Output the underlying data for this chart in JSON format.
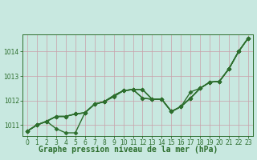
{
  "title": "Graphe pression niveau de la mer (hPa)",
  "bg_color": "#c8e8e0",
  "plot_bg_color": "#c8e8e0",
  "grid_color": "#c8a0a8",
  "line_color": "#2d6e2d",
  "marker": "D",
  "markersize": 2.5,
  "linewidth": 1.0,
  "xlim": [
    -0.5,
    23.5
  ],
  "ylim": [
    1010.55,
    1014.7
  ],
  "yticks": [
    1011,
    1012,
    1013,
    1014
  ],
  "xticks": [
    0,
    1,
    2,
    3,
    4,
    5,
    6,
    7,
    8,
    9,
    10,
    11,
    12,
    13,
    14,
    15,
    16,
    17,
    18,
    19,
    20,
    21,
    22,
    23
  ],
  "tick_fontsize": 5.5,
  "ylabel_fontsize": 6.0,
  "xlabel_fontsize": 7.0,
  "series": [
    [
      1010.75,
      1011.0,
      1011.15,
      1010.85,
      1010.68,
      1010.68,
      1011.5,
      1011.85,
      1011.95,
      1012.15,
      1012.4,
      1012.45,
      1012.45,
      1012.05,
      1012.05,
      1011.55,
      1011.75,
      1012.1,
      1012.5,
      1012.75,
      1012.78,
      1013.3,
      1014.0,
      1014.55
    ],
    [
      1010.75,
      1011.0,
      1011.15,
      1011.35,
      1011.35,
      1011.45,
      1011.5,
      1011.85,
      1011.95,
      1012.2,
      1012.4,
      1012.45,
      1012.45,
      1012.05,
      1012.05,
      1011.55,
      1011.75,
      1012.1,
      1012.5,
      1012.75,
      1012.78,
      1013.3,
      1014.0,
      1014.55
    ],
    [
      1010.75,
      1011.0,
      1011.15,
      1011.35,
      1011.35,
      1011.45,
      1011.5,
      1011.85,
      1011.95,
      1012.2,
      1012.4,
      1012.45,
      1012.1,
      1012.05,
      1012.05,
      1011.55,
      1011.75,
      1012.1,
      1012.5,
      1012.75,
      1012.78,
      1013.3,
      1014.0,
      1014.55
    ],
    [
      1010.75,
      1011.0,
      1011.15,
      1011.35,
      1011.35,
      1011.45,
      1011.5,
      1011.85,
      1011.95,
      1012.2,
      1012.4,
      1012.45,
      1012.1,
      1012.05,
      1012.05,
      1011.55,
      1011.75,
      1012.35,
      1012.5,
      1012.75,
      1012.78,
      1013.3,
      1014.0,
      1014.55
    ]
  ]
}
